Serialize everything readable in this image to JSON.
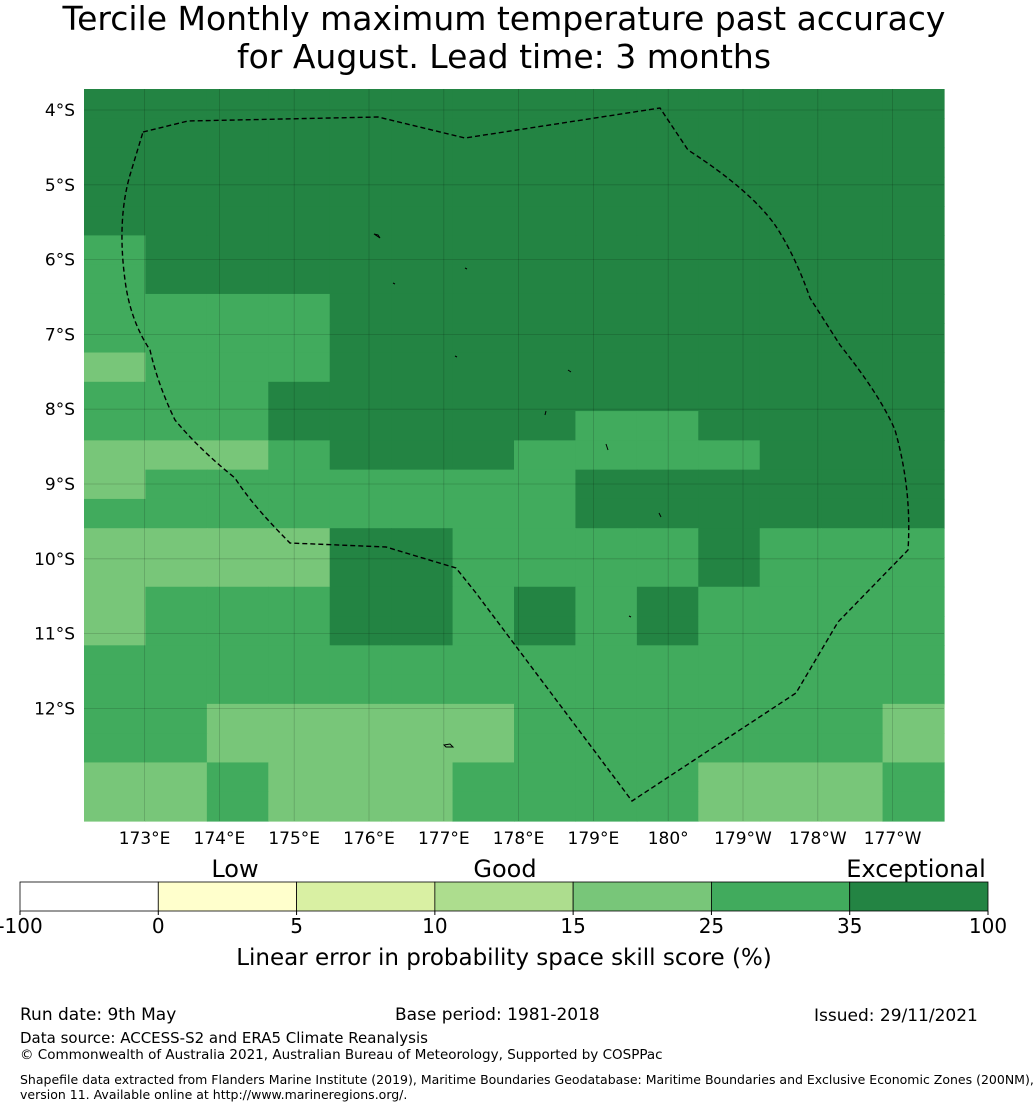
{
  "title": {
    "line1": "Tercile Monthly maximum temperature past accuracy",
    "line2": "for August. Lead time: 3 months"
  },
  "map": {
    "lat_labels": [
      "4°S",
      "5°S",
      "6°S",
      "7°S",
      "8°S",
      "9°S",
      "10°S",
      "11°S",
      "12°S"
    ],
    "lon_labels": [
      "173°E",
      "174°E",
      "175°E",
      "176°E",
      "177°E",
      "178°E",
      "179°E",
      "180°",
      "179°W",
      "178°W",
      "177°W"
    ],
    "lat_range": [
      "3.7°S",
      "13.5°S"
    ],
    "lon_range": [
      "172.2°E",
      "176.6°W"
    ],
    "boundary": "EEZ dashed line",
    "grid_class_rows": [
      "66666666666666",
      "66666666666666",
      "66666666666666",
      "66666666666666",
      "66666666666666",
      "56666666666666",
      "56666666666666",
      "55556666666666",
      "55556666666666",
      "45556666666666",
      "55566666666666",
      "55566666556666",
      "44456665555666",
      "45555555666666",
      "55555555666666",
      "44446655556555",
      "44446655556555",
      "45556656565555",
      "45556656565555",
      "55555555555555",
      "55555555555555",
      "55444445555554",
      "55444445555554",
      "44544455554445",
      "44544455554445"
    ],
    "class_colors": {
      "0": "#ffffff",
      "1": "#ffffcc",
      "2": "#d9f0a3",
      "3": "#addd8e",
      "4": "#78c679",
      "5": "#41ab5d",
      "6": "#238443"
    }
  },
  "colorbar": {
    "headings": [
      "Low",
      "Good",
      "Exceptional"
    ],
    "ticks": [
      "-100",
      "0",
      "5",
      "10",
      "15",
      "25",
      "35",
      "100"
    ],
    "colors": [
      "#ffffff",
      "#ffffcc",
      "#d9f0a3",
      "#addd8e",
      "#78c679",
      "#41ab5d",
      "#238443"
    ],
    "label": "Linear error in probability space skill score (%)"
  },
  "footer": {
    "run_date": "Run date: 9th May",
    "base_period": "Base period: 1981-2018",
    "issued": "Issued: 29/11/2021",
    "data_source": "Data source: ACCESS-S2 and ERA5 Climate Reanalysis",
    "copyright": "© Commonwealth of Australia 2021, Australian Bureau of Meteorology, Supported by COSPPac",
    "shapefile_line1": "Shapefile data extracted from Flanders Marine Institute (2019), Maritime Boundaries Geodatabase: Maritime Boundaries and Exclusive Economic Zones (200NM),",
    "shapefile_line2": "version 11. Available online at http://www.marineregions.org/."
  }
}
